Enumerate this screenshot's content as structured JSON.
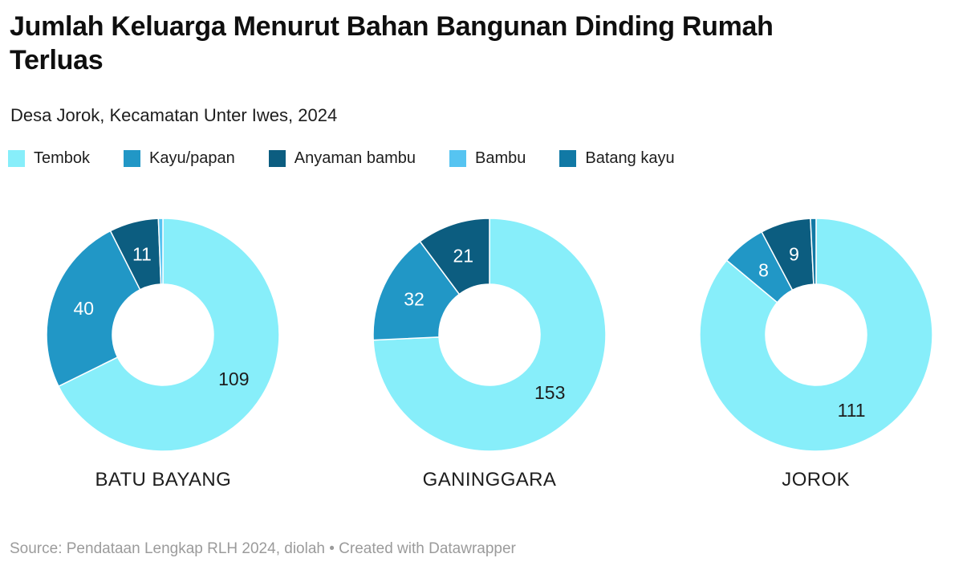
{
  "header": {
    "title": "Jumlah Keluarga Menurut Bahan Bangunan Dinding Rumah Terluas",
    "title_lines": [
      "Jumlah Keluarga Menurut Bahan Bangunan Dinding Rumah",
      "Terluas"
    ],
    "subtitle": "Desa Jorok, Kecamatan Unter Iwes, 2024"
  },
  "legend": {
    "items": [
      {
        "label": "Tembok",
        "color": "#87eefa",
        "label_color": "#1d1d1d"
      },
      {
        "label": "Kayu/papan",
        "color": "#2197c6",
        "label_color": "#ffffff"
      },
      {
        "label": "Anyaman bambu",
        "color": "#0c5d80",
        "label_color": "#ffffff"
      },
      {
        "label": "Bambu",
        "color": "#56c4f1",
        "label_color": "#1d1d1d"
      },
      {
        "label": "Batang kayu",
        "color": "#1179a5",
        "label_color": "#ffffff"
      }
    ]
  },
  "chart_data": {
    "type": "pie",
    "variant": "donut",
    "title": "Jumlah Keluarga Menurut Bahan Bangunan Dinding Rumah Terluas",
    "subtitle": "Desa Jorok, Kecamatan Unter Iwes, 2024",
    "categories": [
      "Tembok",
      "Kayu/papan",
      "Anyaman bambu",
      "Bambu",
      "Batang kayu"
    ],
    "series": [
      {
        "name": "BATU BAYANG",
        "values": [
          109,
          40,
          11,
          1,
          0
        ]
      },
      {
        "name": "GANINGGARA",
        "values": [
          153,
          32,
          21,
          0,
          0
        ]
      },
      {
        "name": "JOROK",
        "values": [
          111,
          8,
          9,
          0,
          1
        ]
      }
    ],
    "start_angle_deg": 0,
    "direction": "clockwise",
    "hole_ratio": 0.434,
    "legend_position": "top",
    "min_label_angle_deg": 10
  },
  "footer": {
    "text": "Source: Pendataan Lengkap RLH 2024, diolah • Created with Datawrapper"
  },
  "colors": {
    "background": "#ffffff",
    "title_text": "#0f0f0f",
    "body_text": "#1d1d1d",
    "footer_text": "#9b9b9b",
    "slice_separator": "#ffffff"
  }
}
